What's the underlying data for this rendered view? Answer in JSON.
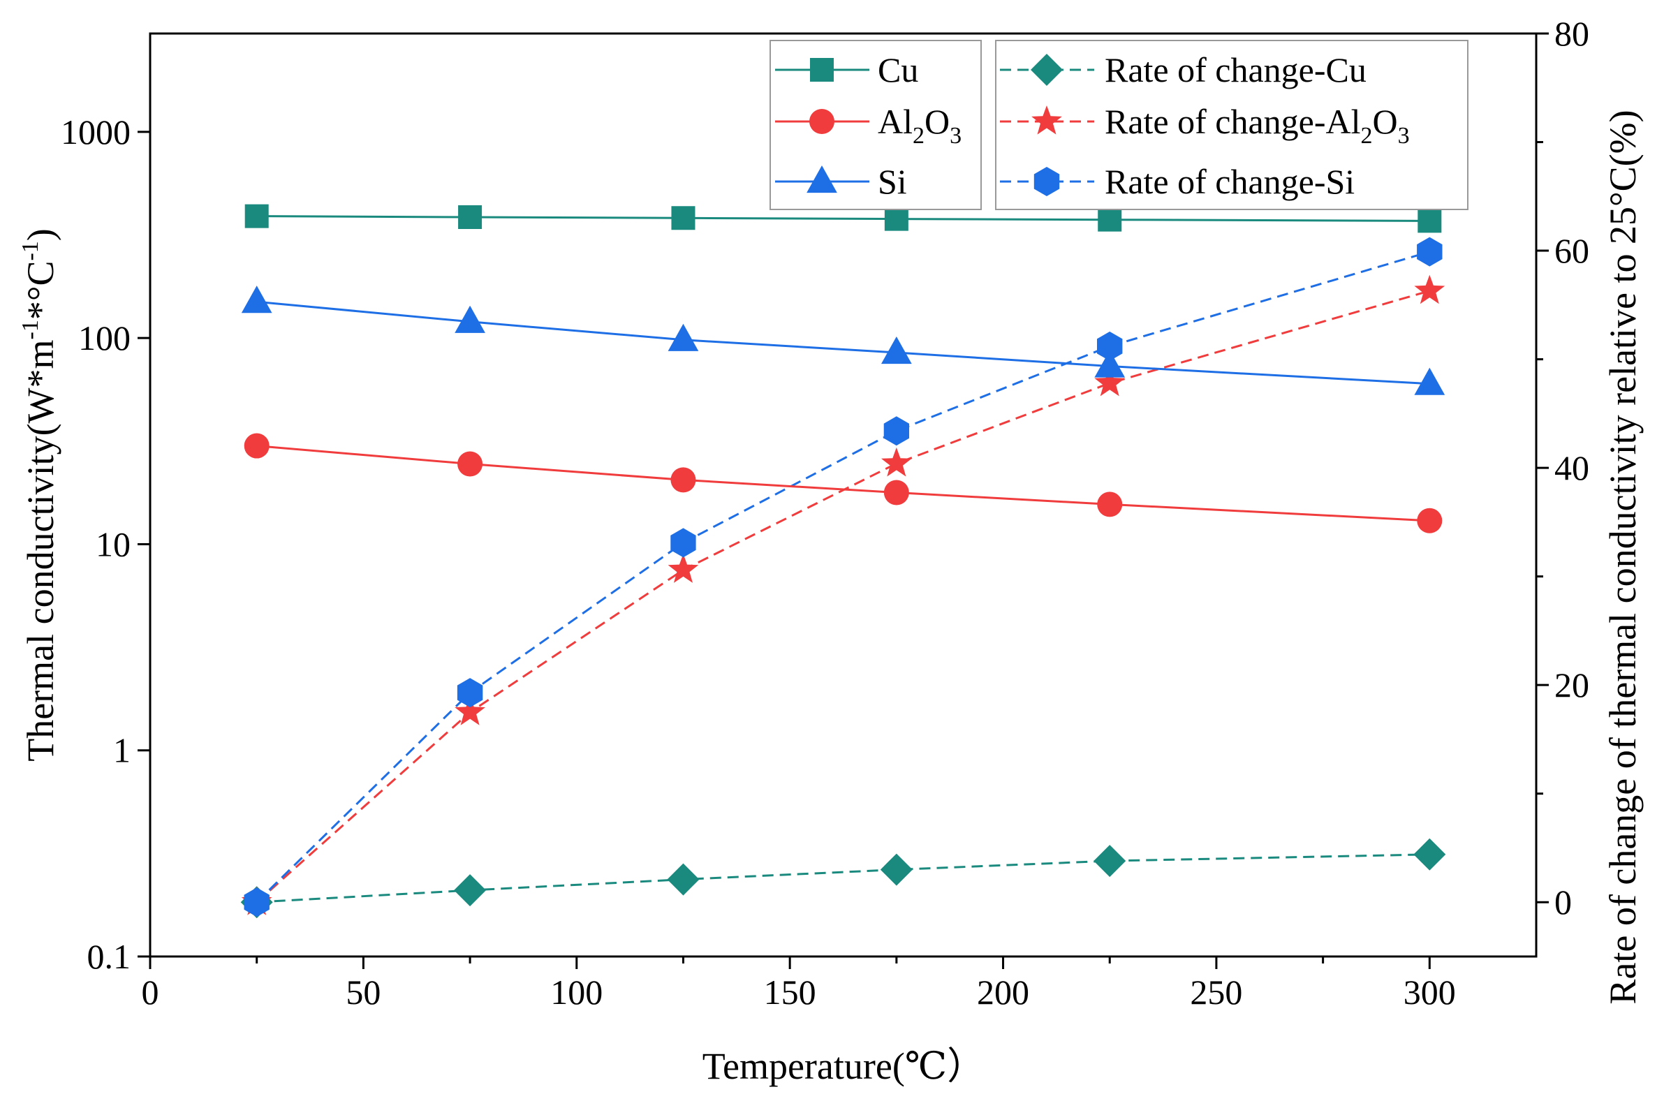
{
  "chart_data": {
    "type": "line",
    "xlabel": "Temperature(℃）",
    "ylabel_left": {
      "main": "Thermal conductivity(W*m",
      "sup1": "-1",
      "mid": "*°C",
      "sup2": "-1",
      "end": ")"
    },
    "ylabel_right": "Rate of change of thermal conductivity relative to 25°C(%)",
    "xlim": [
      0,
      325
    ],
    "x_ticks": [
      0,
      50,
      100,
      150,
      200,
      250,
      300
    ],
    "y_left_scale": "log",
    "y_left_lim": [
      0.1,
      3000
    ],
    "y_left_ticks": [
      0.1,
      1,
      10,
      100,
      1000
    ],
    "y_left_tick_labels": [
      "0.1",
      "1",
      "10",
      "100",
      "1000"
    ],
    "y_right_lim": [
      -5,
      80
    ],
    "y_right_ticks": [
      0,
      20,
      40,
      60,
      80
    ],
    "x": [
      25,
      75,
      125,
      175,
      225,
      300
    ],
    "series": [
      {
        "name": "Cu",
        "label_main": "Cu",
        "axis": "left",
        "marker": "square",
        "dashed": false,
        "color": "#1a8a7e",
        "values": [
          390,
          386,
          382,
          378,
          375,
          370
        ]
      },
      {
        "name": "Al2O3",
        "label_main": "Al",
        "label_sub1": "2",
        "label_mid": "O",
        "label_sub2": "3",
        "axis": "left",
        "marker": "circle",
        "dashed": false,
        "color": "#f03c3c",
        "values": [
          30,
          24.5,
          20.5,
          17.8,
          15.6,
          13
        ]
      },
      {
        "name": "Si",
        "label_main": "Si",
        "axis": "left",
        "marker": "triangle",
        "dashed": false,
        "color": "#1e6ee6",
        "values": [
          150,
          120,
          98,
          85,
          73,
          60
        ]
      },
      {
        "name": "Rate of change-Cu",
        "label_main": "Rate of change-Cu",
        "axis": "right",
        "marker": "diamond",
        "dashed": true,
        "color": "#1a8a7e",
        "values": [
          0,
          1.1,
          2.1,
          3.0,
          3.8,
          4.4
        ]
      },
      {
        "name": "Rate of change-Al2O3",
        "label_main": "Rate of change-Al",
        "label_sub1": "2",
        "label_mid": "O",
        "label_sub2": "3",
        "axis": "right",
        "marker": "star",
        "dashed": true,
        "color": "#f03c3c",
        "values": [
          0,
          17.5,
          30.6,
          40.4,
          47.8,
          56.3
        ]
      },
      {
        "name": "Rate of change-Si",
        "label_main": "Rate of change-Si",
        "axis": "right",
        "marker": "hexagon",
        "dashed": true,
        "color": "#1e6ee6",
        "values": [
          0,
          19.3,
          33.1,
          43.4,
          51.2,
          59.9
        ]
      }
    ],
    "legend_position": "top-right"
  }
}
